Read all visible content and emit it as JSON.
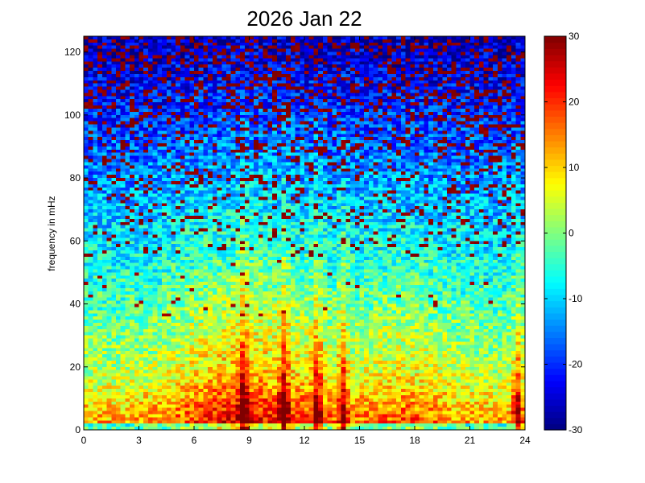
{
  "chart_data": {
    "type": "heatmap",
    "title": "2026 Jan 22",
    "xlabel": "",
    "ylabel": "frequency in mHz",
    "xlim": [
      0,
      24
    ],
    "ylim": [
      0,
      125
    ],
    "x_ticks": [
      0,
      3,
      6,
      9,
      12,
      15,
      18,
      21,
      24
    ],
    "y_ticks": [
      0,
      20,
      40,
      60,
      80,
      100,
      120
    ],
    "colorbar": {
      "min": -30,
      "max": 30,
      "ticks": [
        -30,
        -20,
        -10,
        0,
        10,
        20,
        30
      ],
      "colormap": "jet"
    },
    "grid": false,
    "grid_resolution": {
      "time_bins": 96,
      "freq_bins": 125
    },
    "bright_bursts_hours": [
      8.7,
      10.9,
      12.7,
      14.1,
      23.6
    ],
    "low_band_mHz": [
      0,
      18
    ],
    "colors": {
      "background": "#ffffff",
      "axis": "#000000"
    }
  }
}
